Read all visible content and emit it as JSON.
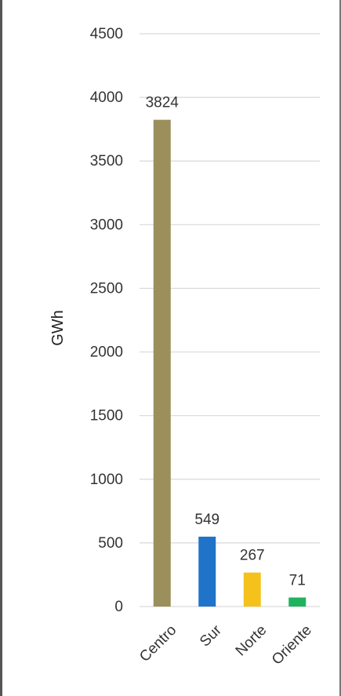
{
  "chart_data": {
    "type": "bar",
    "categories": [
      "Centro",
      "Sur",
      "Norte",
      "Oriente"
    ],
    "values": [
      3824,
      549,
      267,
      71
    ],
    "data_labels": [
      "3824",
      "549",
      "267",
      "71"
    ],
    "colors": [
      "#9b8f5b",
      "#1f73c9",
      "#f5c21b",
      "#1fb360"
    ],
    "ylabel": "GWh",
    "ylim": [
      0,
      4500
    ],
    "yticks": [
      0,
      500,
      1000,
      1500,
      2000,
      2500,
      3000,
      3500,
      4000,
      4500
    ],
    "ytick_labels": [
      "0",
      "500",
      "1000",
      "1500",
      "2000",
      "2500",
      "3000",
      "3500",
      "4000",
      "4500"
    ],
    "grid": true,
    "legend": "none"
  }
}
